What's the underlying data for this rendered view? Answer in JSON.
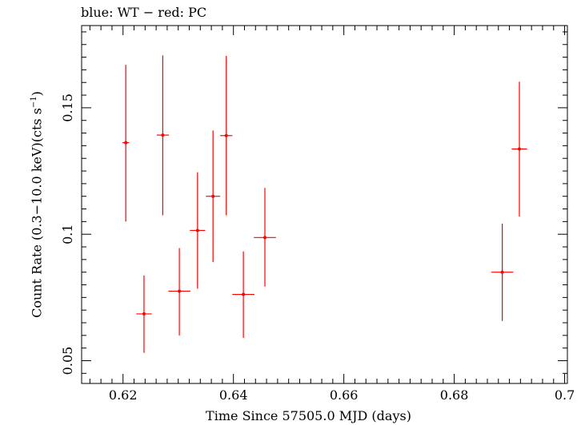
{
  "chart_data": {
    "type": "scatter",
    "title": "blue: WT − red: PC",
    "xlabel": "Time Since 57505.0 MJD (days)",
    "ylabel_main": "Count Rate (0.3−10.0 keV)(cts s",
    "ylabel_exp": "−1",
    "ylabel_tail": ")",
    "xlim": [
      0.6125,
      0.7005
    ],
    "ylim": [
      0.041,
      0.1825
    ],
    "xticks": [
      0.62,
      0.64,
      0.66,
      0.68,
      0.7
    ],
    "xtick_labels": [
      "0.62",
      "0.64",
      "0.66",
      "0.68",
      "0.7"
    ],
    "yticks": [
      0.05,
      0.1,
      0.15
    ],
    "ytick_labels": [
      "0.05",
      "0.1",
      "0.15"
    ],
    "grid": false,
    "series": [
      {
        "color": "#ff0000",
        "points": [
          {
            "x": 0.6205,
            "xerr": 0.0006,
            "y": 0.1362,
            "ylo": 0.105,
            "yhi": 0.167
          },
          {
            "x": 0.6238,
            "xerr": 0.0014,
            "y": 0.0685,
            "ylo": 0.0531,
            "yhi": 0.0837
          },
          {
            "x": 0.6272,
            "xerr": 0.0011,
            "y": 0.1392,
            "ylo": 0.1075,
            "yhi": 0.1707
          },
          {
            "x": 0.6302,
            "xerr": 0.002,
            "y": 0.0775,
            "ylo": 0.06,
            "yhi": 0.0945
          },
          {
            "x": 0.6335,
            "xerr": 0.0014,
            "y": 0.1015,
            "ylo": 0.0785,
            "yhi": 0.1245
          },
          {
            "x": 0.6363,
            "xerr": 0.0013,
            "y": 0.115,
            "ylo": 0.089,
            "yhi": 0.141
          },
          {
            "x": 0.6387,
            "xerr": 0.0011,
            "y": 0.139,
            "ylo": 0.1075,
            "yhi": 0.1705
          },
          {
            "x": 0.6418,
            "xerr": 0.002,
            "y": 0.0762,
            "ylo": 0.059,
            "yhi": 0.0932
          },
          {
            "x": 0.6457,
            "xerr": 0.002,
            "y": 0.0987,
            "ylo": 0.0793,
            "yhi": 0.1183
          },
          {
            "x": 0.6887,
            "xerr": 0.002,
            "y": 0.085,
            "ylo": 0.0657,
            "yhi": 0.1042
          },
          {
            "x": 0.6918,
            "xerr": 0.0014,
            "y": 0.1337,
            "ylo": 0.107,
            "yhi": 0.1603
          }
        ]
      }
    ]
  }
}
